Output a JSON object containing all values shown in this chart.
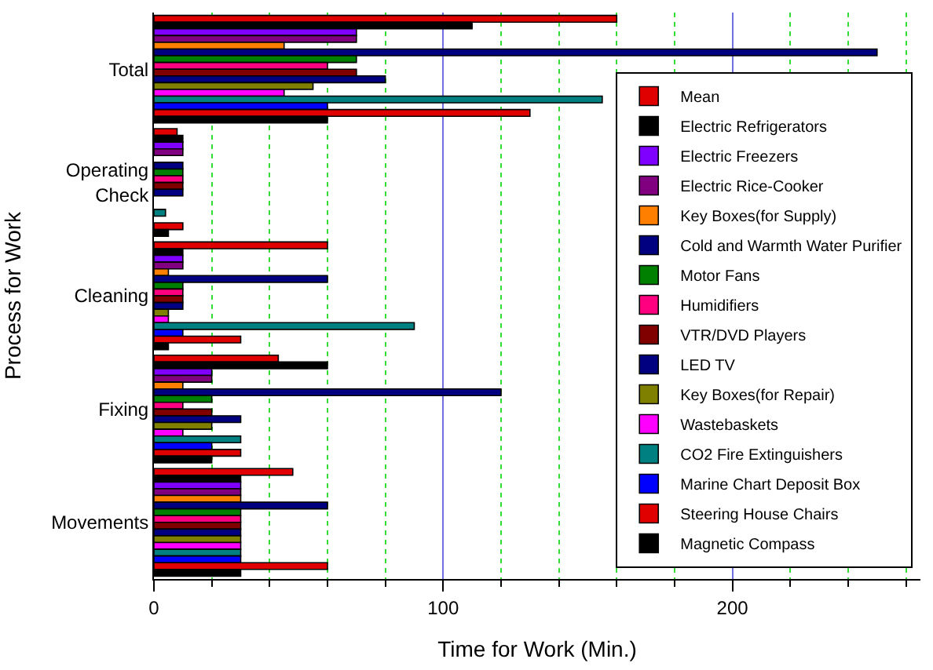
{
  "chart_data": {
    "type": "bar",
    "orientation": "horizontal",
    "xlabel": "Time for Work (Min.)",
    "ylabel": "Process for Work",
    "categories": [
      "Total",
      "Operating Check",
      "Cleaning",
      "Fixing",
      "Movements"
    ],
    "xlim": [
      0,
      265
    ],
    "xticks": [
      0,
      {
        "value": 20,
        "label": null
      },
      {
        "value": 40,
        "label": null
      },
      {
        "value": 60,
        "label": null
      },
      {
        "value": 80,
        "label": null
      },
      100,
      {
        "value": 120,
        "label": null
      },
      {
        "value": 140,
        "label": null
      },
      {
        "value": 160,
        "label": null
      },
      {
        "value": 180,
        "label": null
      },
      200,
      {
        "value": 220,
        "label": null
      },
      {
        "value": 240,
        "label": null
      },
      {
        "value": 260,
        "label": null
      }
    ],
    "grid": "x",
    "legend": "bottom right",
    "series": [
      {
        "name": "Mean",
        "color": "#e00000",
        "values": [
          160,
          8,
          60,
          43,
          48
        ]
      },
      {
        "name": "Electric Refrigerators",
        "color": "#000000",
        "values": [
          110,
          10,
          10,
          60,
          30
        ]
      },
      {
        "name": "Electric Freezers",
        "color": "#8000ff",
        "values": [
          70,
          10,
          10,
          20,
          30
        ]
      },
      {
        "name": "Electric Rice-Cooker",
        "color": "#800080",
        "values": [
          70,
          10,
          10,
          20,
          30
        ]
      },
      {
        "name": "Key Boxes(for Supply)",
        "color": "#ff8000",
        "values": [
          45,
          0,
          5,
          10,
          30
        ]
      },
      {
        "name": "Cold and Warmth Water Purifier",
        "color": "#000080",
        "values": [
          250,
          10,
          60,
          120,
          60
        ]
      },
      {
        "name": "Motor Fans",
        "color": "#008000",
        "values": [
          70,
          10,
          10,
          20,
          30
        ]
      },
      {
        "name": "Humidifiers",
        "color": "#ff0080",
        "values": [
          60,
          10,
          10,
          10,
          30
        ]
      },
      {
        "name": "VTR/DVD Players",
        "color": "#800000",
        "values": [
          70,
          10,
          10,
          20,
          30
        ]
      },
      {
        "name": "LED TV",
        "color": "#000080",
        "values": [
          80,
          10,
          10,
          30,
          30
        ]
      },
      {
        "name": "Key Boxes(for Repair)",
        "color": "#808000",
        "values": [
          55,
          0,
          5,
          20,
          30
        ]
      },
      {
        "name": "Wastebaskets",
        "color": "#ff00ff",
        "values": [
          45,
          0,
          5,
          10,
          30
        ]
      },
      {
        "name": "CO2 Fire Extinguishers",
        "color": "#008080",
        "values": [
          155,
          4,
          90,
          30,
          30
        ]
      },
      {
        "name": "Marine Chart Deposit Box",
        "color": "#0000ff",
        "values": [
          60,
          0,
          10,
          20,
          30
        ]
      },
      {
        "name": "Steering House Chairs",
        "color": "#e00000",
        "values": [
          130,
          10,
          30,
          30,
          60
        ]
      },
      {
        "name": "Magnetic Compass",
        "color": "#000000",
        "values": [
          60,
          5,
          5,
          20,
          30
        ]
      }
    ]
  }
}
